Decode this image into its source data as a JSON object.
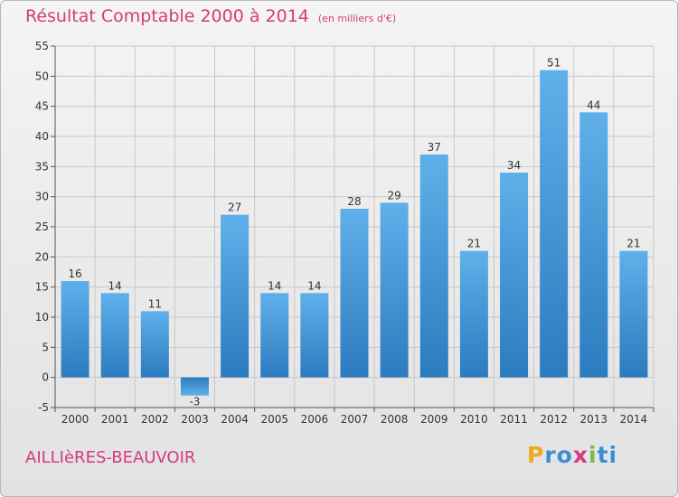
{
  "chart_data": {
    "type": "bar",
    "title": "Résultat Comptable 2000 à 2014",
    "subtitle": "(en milliers d'€)",
    "categories": [
      "2000",
      "2001",
      "2002",
      "2003",
      "2004",
      "2005",
      "2006",
      "2007",
      "2008",
      "2009",
      "2010",
      "2011",
      "2012",
      "2013",
      "2014"
    ],
    "values": [
      16,
      14,
      11,
      -3,
      27,
      14,
      14,
      28,
      29,
      37,
      21,
      34,
      51,
      44,
      21
    ],
    "ylim": [
      -5,
      55
    ],
    "yticks": [
      -5,
      0,
      5,
      10,
      15,
      20,
      25,
      30,
      35,
      40,
      45,
      50,
      55
    ],
    "grid": true,
    "bar_color": "#3a8fd3",
    "grid_color": "#c8c8c8"
  },
  "footer": {
    "commune": "AILLIèRES-BEAUVOIR",
    "brand_letters": [
      "P",
      "r",
      "o",
      "x",
      "i",
      "t",
      "i"
    ],
    "brand_colors": [
      "#f2a71c",
      "#3b8ed3",
      "#3b8ed3",
      "#d63a7e",
      "#7ab94a",
      "#3b8ed3",
      "#3b8ed3"
    ]
  },
  "colors": {
    "title": "#d63a7e"
  }
}
